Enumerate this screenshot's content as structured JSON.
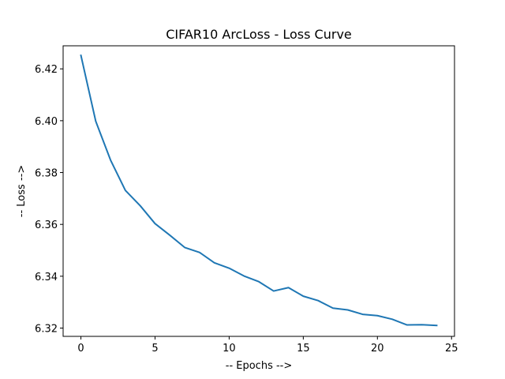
{
  "chart_data": {
    "type": "line",
    "title": "CIFAR10 ArcLoss - Loss Curve",
    "xlabel": "-- Epochs -->",
    "ylabel": "-- Loss -->",
    "xlim": [
      -1.2,
      25.2
    ],
    "ylim": [
      6.3168,
      6.4289
    ],
    "x_ticks": [
      0,
      5,
      10,
      15,
      20,
      25
    ],
    "x_tick_labels": [
      "0",
      "5",
      "10",
      "15",
      "20",
      "25"
    ],
    "y_ticks": [
      6.32,
      6.34,
      6.36,
      6.38,
      6.4,
      6.42
    ],
    "y_tick_labels": [
      "6.32",
      "6.34",
      "6.36",
      "6.38",
      "6.40",
      "6.42"
    ],
    "grid": false,
    "series": [
      {
        "color": "#1f77b4",
        "x": [
          0,
          1,
          2,
          3,
          4,
          5,
          6,
          7,
          8,
          9,
          10,
          11,
          12,
          13,
          14,
          15,
          16,
          17,
          18,
          19,
          20,
          21,
          22,
          23,
          24
        ],
        "y": [
          6.4252,
          6.3998,
          6.3848,
          6.3731,
          6.3672,
          6.3603,
          6.3558,
          6.3511,
          6.3492,
          6.3452,
          6.3431,
          6.3401,
          6.3379,
          6.3343,
          6.3356,
          6.3323,
          6.3306,
          6.3277,
          6.327,
          6.3253,
          6.3248,
          6.3234,
          6.3212,
          6.3213,
          6.321
        ]
      }
    ]
  }
}
